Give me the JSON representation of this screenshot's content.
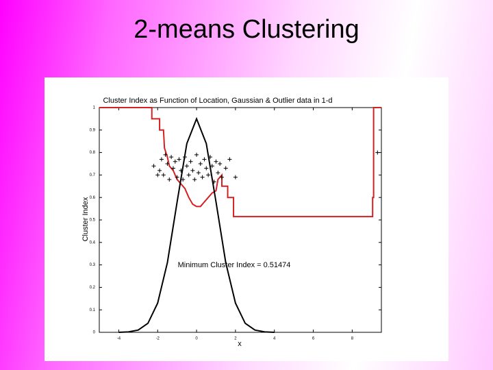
{
  "slide_title": "2-means Clustering",
  "chart_data": {
    "type": "line",
    "title": "Cluster Index as Function of Location, Gaussian & Outlier data in 1-d",
    "x_label": "x",
    "y_label": "Cluster Index",
    "annotation": "Minimum Cluster Index = 0.51474",
    "xlim": [
      -5,
      9.5
    ],
    "ylim": [
      0,
      1
    ],
    "xticks": [
      -4,
      -2,
      0,
      2,
      4,
      6,
      8
    ],
    "yticks": [
      0,
      0.1,
      0.2,
      0.3,
      0.4,
      0.5,
      0.6,
      0.7,
      0.8,
      0.9,
      1
    ],
    "series": [
      {
        "style": "line",
        "color": "#d42020",
        "x": [
          -5,
          -2.3,
          -2.3,
          -1.9,
          -1.9,
          -1.7,
          -1.65,
          -1.5,
          -1.4,
          -1.2,
          -1.0,
          -0.8,
          -0.6,
          -0.4,
          -0.2,
          0,
          0.2,
          0.4,
          0.6,
          0.8,
          1.0,
          1.1,
          1.3,
          1.3,
          1.6,
          1.6,
          1.9,
          1.9,
          9.05,
          9.05,
          9.1,
          9.1,
          9.5
        ],
        "values": [
          1,
          1,
          0.95,
          0.95,
          0.9,
          0.9,
          0.82,
          0.78,
          0.74,
          0.72,
          0.68,
          0.66,
          0.64,
          0.6,
          0.57,
          0.56,
          0.56,
          0.58,
          0.6,
          0.62,
          0.63,
          0.68,
          0.7,
          0.65,
          0.65,
          0.6,
          0.6,
          0.515,
          0.515,
          0.6,
          0.6,
          1,
          1
        ]
      },
      {
        "style": "line",
        "color": "#000000",
        "x": [
          -4,
          -3.5,
          -3,
          -2.5,
          -2,
          -1.5,
          -1,
          -0.5,
          0,
          0.5,
          1,
          1.5,
          2,
          2.5,
          3,
          3.5,
          4
        ],
        "values": [
          0,
          0.002,
          0.01,
          0.04,
          0.13,
          0.31,
          0.58,
          0.84,
          0.95,
          0.84,
          0.58,
          0.31,
          0.13,
          0.04,
          0.01,
          0.002,
          0
        ]
      },
      {
        "style": "markers",
        "color": "#000000",
        "x": [
          -2.2,
          -2.0,
          -1.9,
          -1.8,
          -1.7,
          -1.6,
          -1.5,
          -1.4,
          -1.3,
          -1.2,
          -1.1,
          -1.0,
          -0.9,
          -0.8,
          -0.7,
          -0.6,
          -0.5,
          -0.4,
          -0.3,
          -0.2,
          -0.1,
          0,
          0.1,
          0.2,
          0.3,
          0.4,
          0.5,
          0.6,
          0.7,
          0.8,
          0.9,
          1.0,
          1.1,
          1.2,
          1.3,
          1.5,
          1.7,
          2.0,
          9.3
        ],
        "values": [
          0.74,
          0.7,
          0.72,
          0.77,
          0.7,
          0.79,
          0.75,
          0.68,
          0.78,
          0.73,
          0.76,
          0.69,
          0.77,
          0.72,
          0.68,
          0.78,
          0.74,
          0.7,
          0.76,
          0.72,
          0.68,
          0.79,
          0.71,
          0.75,
          0.69,
          0.77,
          0.73,
          0.7,
          0.78,
          0.74,
          0.67,
          0.76,
          0.71,
          0.75,
          0.69,
          0.73,
          0.77,
          0.69,
          0.8
        ]
      }
    ]
  }
}
